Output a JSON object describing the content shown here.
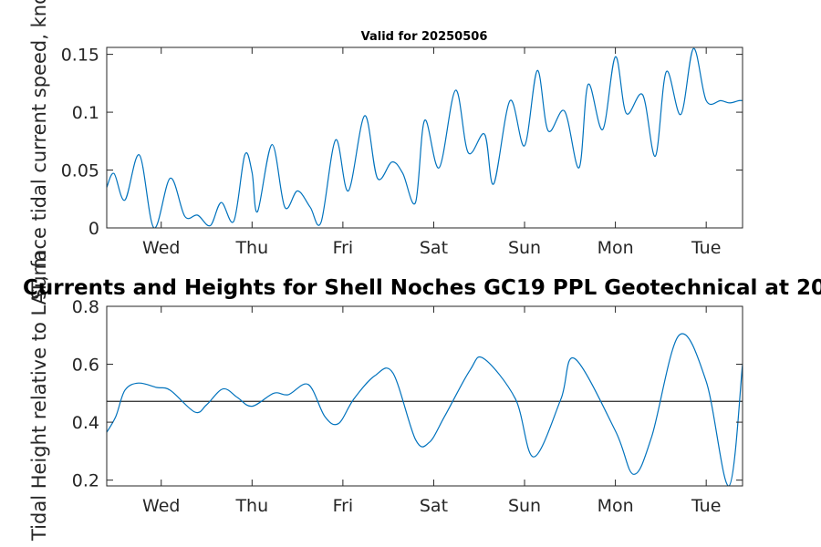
{
  "chart_data": [
    {
      "type": "line",
      "title": "Valid for 20250506",
      "ylabel": "Surface tidal current speed, knots",
      "xlabel": "",
      "ylim": [
        0,
        0.156
      ],
      "xlim": [
        0,
        7.0
      ],
      "yticks": [
        0,
        0.05,
        0.1,
        0.15
      ],
      "ytick_labels": [
        "0",
        "0.05",
        "0.1",
        "0.15"
      ],
      "xticks": [
        0.6,
        1.6,
        2.6,
        3.6,
        4.6,
        5.6,
        6.6
      ],
      "xtick_labels": [
        "Wed",
        "Thu",
        "Fri",
        "Sat",
        "Sun",
        "Mon",
        "Tue"
      ],
      "grid": false,
      "series": [
        {
          "color": "#0072bd",
          "x": [
            0.0,
            0.08,
            0.2,
            0.36,
            0.52,
            0.7,
            0.86,
            1.0,
            1.14,
            1.26,
            1.4,
            1.52,
            1.6,
            1.66,
            1.82,
            1.96,
            2.1,
            2.24,
            2.36,
            2.52,
            2.66,
            2.84,
            2.98,
            3.14,
            3.26,
            3.4,
            3.5,
            3.66,
            3.84,
            3.98,
            4.16,
            4.26,
            4.44,
            4.6,
            4.74,
            4.86,
            5.04,
            5.2,
            5.3,
            5.46,
            5.6,
            5.72,
            5.9,
            6.04,
            6.16,
            6.32,
            6.46,
            6.6,
            6.76,
            6.86,
            6.96,
            7.0
          ],
          "y": [
            0.035,
            0.047,
            0.024,
            0.063,
            0.0,
            0.043,
            0.01,
            0.011,
            0.002,
            0.022,
            0.006,
            0.063,
            0.048,
            0.014,
            0.072,
            0.018,
            0.032,
            0.018,
            0.005,
            0.076,
            0.032,
            0.097,
            0.043,
            0.057,
            0.047,
            0.022,
            0.093,
            0.052,
            0.119,
            0.065,
            0.081,
            0.038,
            0.11,
            0.071,
            0.136,
            0.084,
            0.101,
            0.052,
            0.124,
            0.085,
            0.148,
            0.099,
            0.115,
            0.062,
            0.135,
            0.098,
            0.155,
            0.11,
            0.11,
            0.108,
            0.11,
            0.11
          ]
        }
      ]
    },
    {
      "type": "line",
      "title": "Currents and Heights for Shell Noches   GC19 PPL  Geotechnical at 20",
      "ylabel": "Tidal Height relative to LAT, m",
      "xlabel": "",
      "ylim": [
        0.18,
        0.8
      ],
      "xlim": [
        0,
        7.0
      ],
      "yticks": [
        0.2,
        0.4,
        0.6,
        0.8
      ],
      "ytick_labels": [
        "0.2",
        "0.4",
        "0.6",
        "0.8"
      ],
      "xticks": [
        0.6,
        1.6,
        2.6,
        3.6,
        4.6,
        5.6,
        6.6
      ],
      "xtick_labels": [
        "Wed",
        "Thu",
        "Fri",
        "Sat",
        "Sun",
        "Mon",
        "Tue"
      ],
      "grid": false,
      "reference_line": {
        "y": 0.472,
        "color": "#262626"
      },
      "series": [
        {
          "color": "#0072bd",
          "x": [
            0.0,
            0.1,
            0.2,
            0.35,
            0.55,
            0.7,
            0.97,
            1.1,
            1.28,
            1.44,
            1.6,
            1.84,
            2.0,
            2.22,
            2.4,
            2.55,
            2.72,
            2.95,
            3.15,
            3.4,
            3.55,
            3.72,
            4.0,
            4.15,
            4.5,
            4.7,
            5.0,
            5.15,
            5.6,
            5.8,
            6.0,
            6.3,
            6.6,
            6.85,
            7.0
          ],
          "y": [
            0.365,
            0.42,
            0.51,
            0.535,
            0.52,
            0.51,
            0.435,
            0.46,
            0.515,
            0.485,
            0.455,
            0.5,
            0.495,
            0.53,
            0.42,
            0.395,
            0.48,
            0.56,
            0.57,
            0.34,
            0.33,
            0.42,
            0.58,
            0.62,
            0.48,
            0.28,
            0.48,
            0.62,
            0.37,
            0.22,
            0.35,
            0.7,
            0.54,
            0.18,
            0.6
          ]
        }
      ]
    }
  ]
}
